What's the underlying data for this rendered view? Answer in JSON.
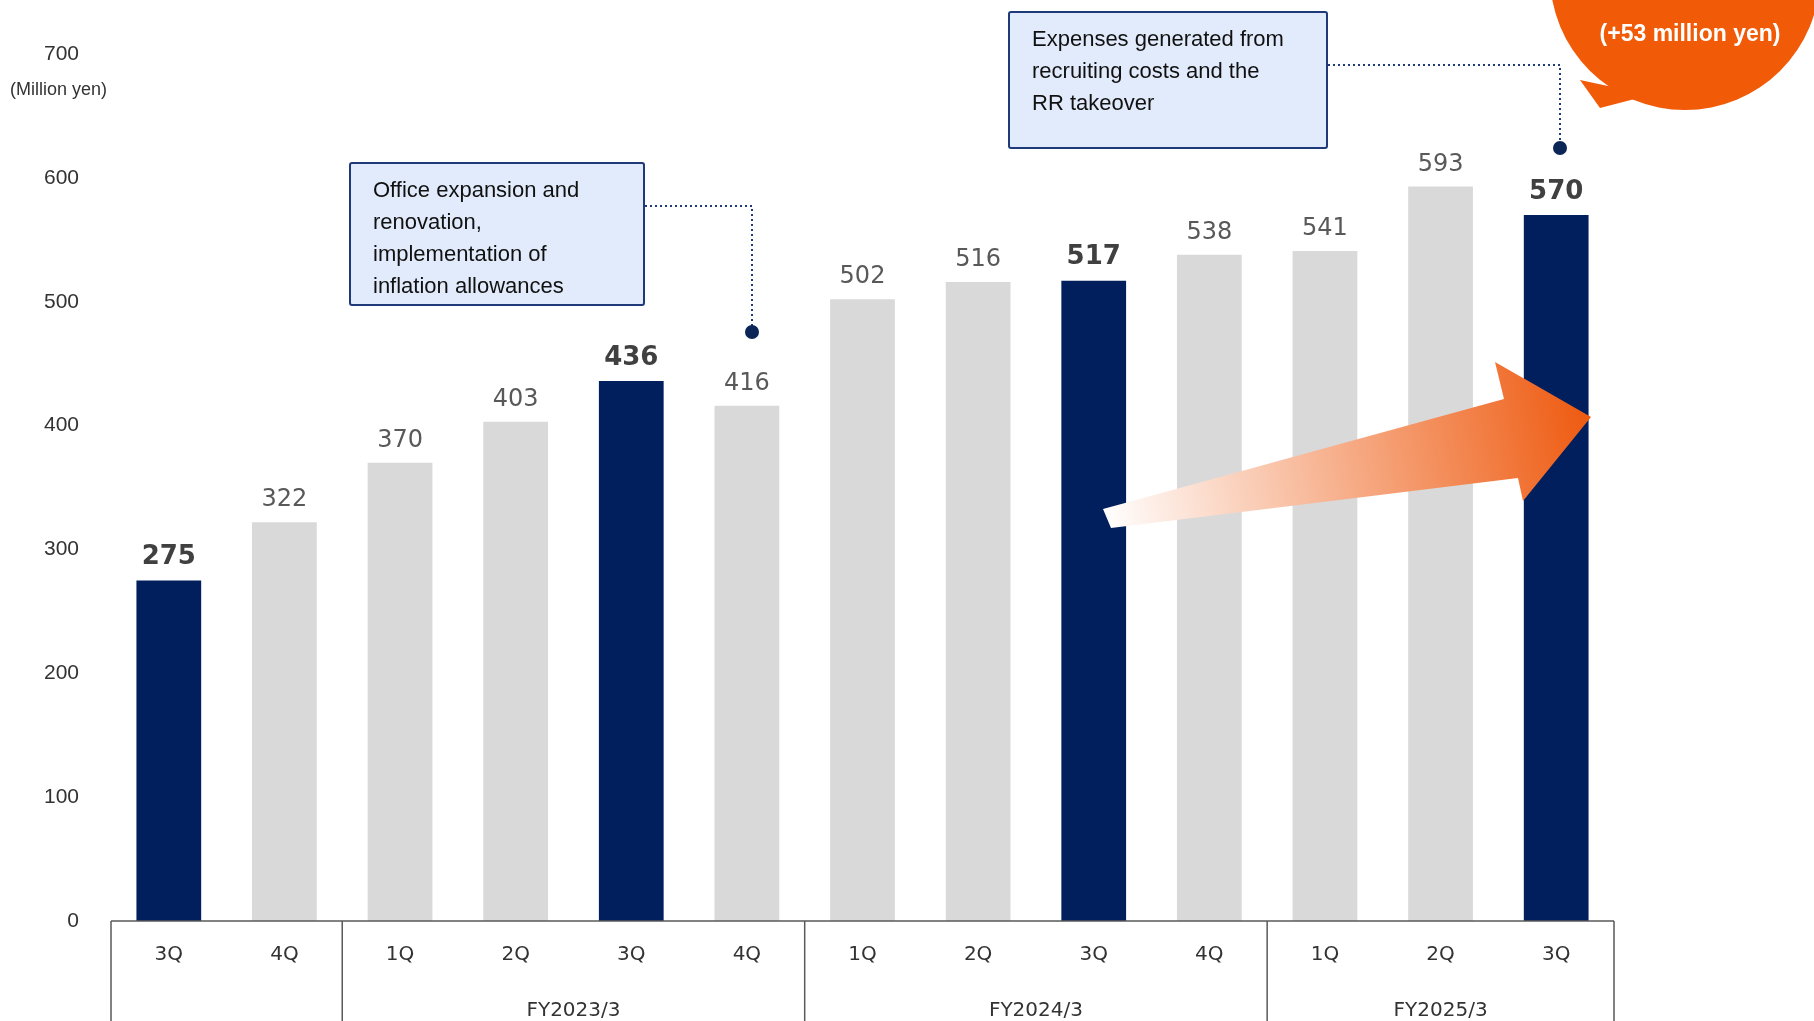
{
  "chart_data": {
    "type": "bar",
    "ylabel": "(Million yen)",
    "categories": [
      "3Q",
      "4Q",
      "1Q",
      "2Q",
      "3Q",
      "4Q",
      "1Q",
      "2Q",
      "3Q",
      "4Q",
      "1Q",
      "2Q",
      "3Q"
    ],
    "values": [
      275,
      322,
      370,
      403,
      436,
      416,
      502,
      516,
      517,
      538,
      541,
      593,
      570
    ],
    "colors": [
      "#001f5c",
      "#d9d9d9",
      "#d9d9d9",
      "#d9d9d9",
      "#001f5c",
      "#d9d9d9",
      "#d9d9d9",
      "#d9d9d9",
      "#001f5c",
      "#d9d9d9",
      "#d9d9d9",
      "#d9d9d9",
      "#001f5c"
    ],
    "ylim": [
      0,
      700
    ],
    "yticks": [
      0,
      100,
      200,
      300,
      400,
      500,
      600,
      700
    ],
    "grid": false,
    "legend": false,
    "data_labels": true,
    "annotations": [
      "Office expansion and renovation, implementation of inflation allowances",
      "Expenses generated from recruiting costs and the RR takeover",
      "(+53 million yen)",
      "FY2023/3",
      "FY2024/3",
      "FY2025/3"
    ]
  }
}
